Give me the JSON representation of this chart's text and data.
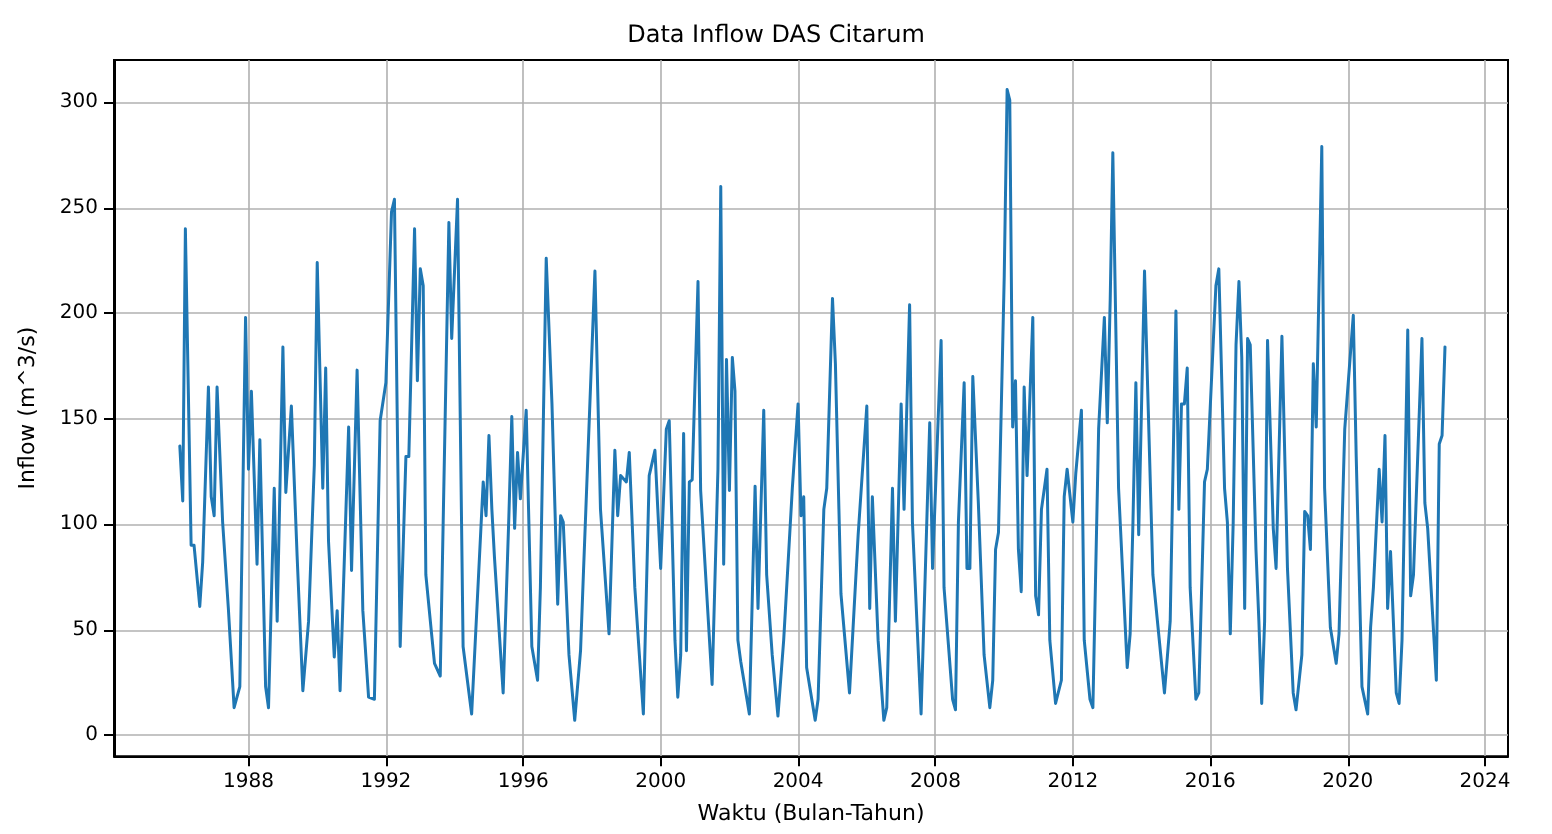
{
  "chart_data": {
    "type": "line",
    "title": "Data Inflow DAS Citarum",
    "xlabel": "Waktu (Bulan-Tahun)",
    "ylabel": "Inflow (m^3/s)",
    "x": [
      "1986-01",
      "1986-02",
      "1986-03",
      "1986-05",
      "1986-06",
      "1986-08",
      "1986-09",
      "1986-11",
      "1986-12",
      "1987-01",
      "1987-02",
      "1987-04",
      "1987-06",
      "1987-08",
      "1987-10",
      "1987-12",
      "1988-01",
      "1988-02",
      "1988-04",
      "1988-05",
      "1988-07",
      "1988-08",
      "1988-10",
      "1988-11",
      "1989-01",
      "1989-02",
      "1989-04",
      "1989-06",
      "1989-08",
      "1989-10",
      "1989-12",
      "1990-01",
      "1990-03",
      "1990-04",
      "1990-05",
      "1990-07",
      "1990-08",
      "1990-09",
      "1990-12",
      "1991-01",
      "1991-03",
      "1991-05",
      "1991-07",
      "1991-09",
      "1991-11",
      "1992-01",
      "1992-03",
      "1992-04",
      "1992-06",
      "1992-08",
      "1992-09",
      "1992-11",
      "1992-12",
      "1993-01",
      "1993-02",
      "1993-03",
      "1993-05",
      "1993-06",
      "1993-08",
      "1993-11",
      "1993-12",
      "1994-02",
      "1994-04",
      "1994-07",
      "1994-11",
      "1994-12",
      "1995-01",
      "1995-02",
      "1995-03",
      "1995-06",
      "1995-08",
      "1995-09",
      "1995-10",
      "1995-11",
      "1995-12",
      "1996-02",
      "1996-04",
      "1996-06",
      "1996-07",
      "1996-09",
      "1996-11",
      "1997-01",
      "1997-02",
      "1997-03",
      "1997-05",
      "1997-07",
      "1997-09",
      "1997-10",
      "1998-02",
      "1998-04",
      "1998-07",
      "1998-09",
      "1998-10",
      "1998-11",
      "1999-01",
      "1999-02",
      "1999-04",
      "1999-07",
      "1999-09",
      "1999-11",
      "2000-01",
      "2000-03",
      "2000-04",
      "2000-06",
      "2000-07",
      "2000-08",
      "2000-09",
      "2000-10",
      "2000-11",
      "2000-12",
      "2001-02",
      "2001-03",
      "2001-07",
      "2001-09",
      "2001-10",
      "2001-11",
      "2001-12",
      "2002-01",
      "2002-02",
      "2002-03",
      "2002-04",
      "2002-05",
      "2002-08",
      "2002-10",
      "2002-11",
      "2003-01",
      "2003-02",
      "2003-04",
      "2003-06",
      "2003-08",
      "2003-11",
      "2004-01",
      "2004-02",
      "2004-03",
      "2004-04",
      "2004-07",
      "2004-08",
      "2004-10",
      "2004-11",
      "2005-01",
      "2005-02",
      "2005-04",
      "2005-07",
      "2005-10",
      "2006-01",
      "2006-02",
      "2006-03",
      "2006-05",
      "2006-07",
      "2006-08",
      "2006-10",
      "2006-11",
      "2007-01",
      "2007-02",
      "2007-04",
      "2007-05",
      "2007-08",
      "2007-11",
      "2007-12",
      "2008-03",
      "2008-04",
      "2008-07",
      "2008-08",
      "2008-09",
      "2008-11",
      "2008-12",
      "2009-01",
      "2009-02",
      "2009-04",
      "2009-06",
      "2009-08",
      "2009-09",
      "2009-10",
      "2009-11",
      "2010-01",
      "2010-02",
      "2010-03",
      "2010-04",
      "2010-05",
      "2010-06",
      "2010-07",
      "2010-08",
      "2010-09",
      "2010-11",
      "2010-12",
      "2011-01",
      "2011-02",
      "2011-04",
      "2011-05",
      "2011-07",
      "2011-09",
      "2011-10",
      "2011-11",
      "2012-01",
      "2012-02",
      "2012-04",
      "2012-05",
      "2012-07",
      "2012-08",
      "2012-10",
      "2012-12",
      "2013-01",
      "2013-02",
      "2013-03",
      "2013-05",
      "2013-08",
      "2013-09",
      "2013-10",
      "2013-11",
      "2013-12",
      "2014-02",
      "2014-03",
      "2014-05",
      "2014-09",
      "2014-11",
      "2015-01",
      "2015-02",
      "2015-03",
      "2015-04",
      "2015-05",
      "2015-06",
      "2015-08",
      "2015-09",
      "2015-11",
      "2015-12",
      "2016-03",
      "2016-04",
      "2016-06",
      "2016-07",
      "2016-08",
      "2016-09",
      "2016-10",
      "2016-11",
      "2016-12",
      "2017-01",
      "2017-02",
      "2017-03",
      "2017-05",
      "2017-06",
      "2017-07",
      "2017-08",
      "2017-09",
      "2017-11",
      "2017-12",
      "2018-02",
      "2018-04",
      "2018-06",
      "2018-07",
      "2018-09",
      "2018-10",
      "2018-11",
      "2018-12",
      "2019-01",
      "2019-02",
      "2019-04",
      "2019-05",
      "2019-07",
      "2019-09",
      "2019-10",
      "2019-12",
      "2020-03",
      "2020-04",
      "2020-06",
      "2020-08",
      "2020-09",
      "2020-10",
      "2020-12",
      "2021-01",
      "2021-02",
      "2021-03",
      "2021-04",
      "2021-06",
      "2021-07",
      "2021-08",
      "2021-10",
      "2021-11",
      "2021-12",
      "2022-03",
      "2022-04",
      "2022-05",
      "2022-08",
      "2022-09",
      "2022-10",
      "2022-11"
    ],
    "series": [
      {
        "color": "#1f77b4",
        "values": [
          137,
          111,
          240,
          90,
          90,
          61,
          82,
          165,
          113,
          104,
          165,
          101,
          60,
          13,
          23,
          198,
          126,
          163,
          81,
          140,
          23,
          13,
          117,
          54,
          184,
          115,
          156,
          85,
          21,
          54,
          128,
          224,
          117,
          174,
          92,
          37,
          59,
          21,
          146,
          78,
          173,
          59,
          18,
          17,
          149,
          167,
          248,
          254,
          42,
          132,
          132,
          240,
          168,
          221,
          213,
          76,
          48,
          34,
          28,
          243,
          188,
          254,
          42,
          10,
          120,
          104,
          142,
          107,
          84,
          20,
          104,
          151,
          98,
          134,
          112,
          154,
          42,
          26,
          70,
          226,
          157,
          62,
          104,
          101,
          38,
          7,
          40,
          76,
          220,
          107,
          48,
          135,
          104,
          123,
          120,
          134,
          70,
          10,
          123,
          135,
          79,
          145,
          149,
          45,
          18,
          38,
          143,
          40,
          120,
          121,
          215,
          116,
          24,
          126,
          260,
          81,
          178,
          116,
          179,
          163,
          45,
          35,
          10,
          118,
          60,
          154,
          76,
          38,
          9,
          45,
          117,
          157,
          104,
          113,
          32,
          7,
          17,
          107,
          117,
          207,
          176,
          67,
          20,
          95,
          156,
          60,
          113,
          45,
          7,
          13,
          117,
          54,
          157,
          107,
          204,
          101,
          10,
          148,
          79,
          187,
          70,
          17,
          12,
          101,
          167,
          79,
          79,
          170,
          110,
          38,
          13,
          26,
          88,
          96,
          217,
          306,
          301,
          146,
          168,
          88,
          68,
          165,
          123,
          198,
          66,
          57,
          107,
          126,
          45,
          15,
          26,
          113,
          126,
          101,
          124,
          154,
          45,
          17,
          13,
          145,
          198,
          148,
          206,
          276,
          117,
          32,
          48,
          101,
          167,
          95,
          220,
          173,
          76,
          20,
          54,
          201,
          107,
          157,
          157,
          174,
          70,
          17,
          20,
          120,
          126,
          213,
          221,
          117,
          101,
          48,
          101,
          185,
          215,
          179,
          60,
          188,
          185,
          88,
          54,
          15,
          54,
          187,
          98,
          79,
          189,
          79,
          20,
          12,
          38,
          106,
          104,
          88,
          176,
          146,
          279,
          117,
          51,
          34,
          48,
          145,
          199,
          132,
          23,
          10,
          51,
          70,
          126,
          101,
          142,
          60,
          87,
          20,
          15,
          45,
          192,
          66,
          76,
          188,
          110,
          98,
          26,
          138,
          142,
          184
        ]
      }
    ],
    "xlim": [
      "1984-02",
      "2024-09"
    ],
    "ylim": [
      -10,
      320
    ],
    "xticks": [
      "1988",
      "1992",
      "1996",
      "2000",
      "2004",
      "2008",
      "2012",
      "2016",
      "2020",
      "2024"
    ],
    "yticks": [
      0,
      50,
      100,
      150,
      200,
      250,
      300
    ],
    "grid": true
  }
}
